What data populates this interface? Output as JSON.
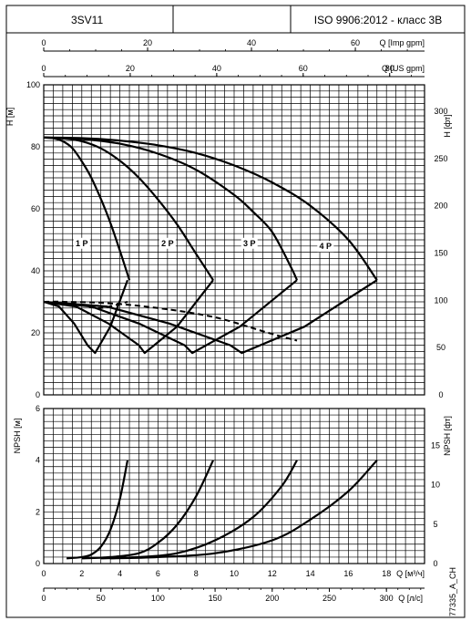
{
  "header": {
    "model": "3SV11",
    "middle": "",
    "standard": "ISO 9906:2012 - класс 3B"
  },
  "code": "77335_A_CH",
  "chart_data": [
    {
      "type": "line",
      "name": "head",
      "ylabel": "H [м]",
      "ylabel_right": "H [фт]",
      "xlim": [
        0,
        20
      ],
      "ylim": [
        0,
        100
      ],
      "yticks": [
        0,
        20,
        40,
        60,
        80,
        100
      ],
      "yticks_right": [
        0,
        50,
        100,
        150,
        200,
        250,
        300
      ],
      "right_ylim": [
        0,
        328.084
      ],
      "x_unit": "m3/h",
      "grid": true,
      "head_series": [
        {
          "name": "1 P",
          "x": [
            0,
            0.5,
            1.0,
            1.5,
            2.0,
            2.5,
            3.0,
            3.5,
            4.0,
            4.5
          ],
          "y": [
            83,
            82.8,
            81.8,
            79.6,
            75.3,
            70.0,
            63.2,
            55.5,
            46.5,
            37.0
          ]
        },
        {
          "name": "2 P",
          "x": [
            0,
            1,
            2,
            3,
            4,
            5,
            6,
            7,
            8,
            8.9
          ],
          "y": [
            83,
            82.7,
            81.8,
            79.5,
            75.5,
            70.0,
            63.0,
            55.0,
            45.5,
            37.0
          ]
        },
        {
          "name": "3 P",
          "x": [
            0,
            2,
            4,
            6,
            8,
            10,
            11,
            12,
            13,
            13.3
          ],
          "y": [
            83,
            82.5,
            81.0,
            77.8,
            72.6,
            64.5,
            59.0,
            52.5,
            41.0,
            37.0
          ]
        },
        {
          "name": "4 P",
          "x": [
            0,
            2,
            4,
            6,
            8,
            10,
            12,
            14,
            16,
            17.5
          ],
          "y": [
            83,
            82.8,
            82.0,
            80.5,
            78.0,
            74.0,
            68.5,
            61.0,
            50.0,
            37.0
          ]
        }
      ],
      "power_series": [
        {
          "name": "",
          "x": [
            0,
            0.8,
            1.6,
            2.3,
            2.7,
            3.5,
            4.4
          ],
          "y": [
            30,
            28.5,
            23.0,
            16.0,
            13.5,
            22.0,
            37.0
          ]
        },
        {
          "name": "",
          "x": [
            0,
            1.7,
            3.4,
            5.0,
            5.3,
            7.0,
            8.9
          ],
          "y": [
            30,
            28.5,
            23.0,
            16.0,
            13.5,
            22.0,
            37.0
          ]
        },
        {
          "name": "",
          "x": [
            0,
            2.5,
            5.0,
            7.4,
            7.8,
            10.3,
            13.3
          ],
          "y": [
            30,
            28.5,
            23.0,
            16.0,
            13.5,
            22.0,
            37.0
          ]
        },
        {
          "name": "",
          "x": [
            0,
            3.3,
            6.6,
            9.8,
            10.4,
            13.7,
            17.5
          ],
          "y": [
            30,
            28.5,
            23.0,
            16.0,
            13.5,
            22.0,
            37.0
          ]
        }
      ],
      "efficiency_series": [
        {
          "name": "",
          "x": [
            0,
            1.0,
            2.0,
            3.0,
            4.4
          ],
          "y": [
            30,
            30,
            29.0,
            28.0,
            30.0
          ]
        },
        {
          "name": "",
          "x": [
            0,
            3,
            6,
            9,
            11.8,
            13.3
          ],
          "y": [
            30,
            29.7,
            28.0,
            25.0,
            20.0,
            17.5
          ]
        }
      ],
      "labels": [
        "1 P",
        "2 P",
        "3 P",
        "4 P"
      ],
      "secondary_axes": [
        {
          "label": "Q [Imp gpm]",
          "ticks": [
            0,
            20,
            40,
            60
          ],
          "per_m3h": 3.666
        },
        {
          "label": "Q [US gpm]",
          "ticks": [
            0,
            20,
            40,
            60,
            80
          ],
          "per_m3h": 4.403
        }
      ]
    },
    {
      "type": "line",
      "name": "npsh",
      "ylabel": "NPSH [м]",
      "ylabel_right": "NPSH [фт]",
      "xlabel": "Q [м³/ч]",
      "xlabel2": "Q [л/с]",
      "xlim": [
        0,
        20
      ],
      "ylim": [
        0,
        6
      ],
      "xticks": [
        0,
        2,
        4,
        6,
        8,
        10,
        12,
        14,
        16,
        18
      ],
      "yticks": [
        0,
        2,
        4,
        6
      ],
      "yticks_right": [
        0,
        5,
        10,
        15
      ],
      "right_ylim": [
        0,
        19.685
      ],
      "secondary_xaxis": {
        "label": "Q [л/с]",
        "ticks": [
          0,
          50,
          100,
          150,
          200,
          250,
          300
        ],
        "per_m3h": 16.667
      },
      "grid": true,
      "series": [
        {
          "name": "",
          "x": [
            1.2,
            2.0,
            2.5,
            3.0,
            3.5,
            4.0,
            4.4
          ],
          "y": [
            0.2,
            0.25,
            0.35,
            0.65,
            1.3,
            2.5,
            4.0
          ]
        },
        {
          "name": "",
          "x": [
            2.0,
            3.5,
            5.0,
            6.0,
            7.0,
            8.0,
            8.9
          ],
          "y": [
            0.2,
            0.25,
            0.4,
            0.8,
            1.5,
            2.6,
            4.0
          ]
        },
        {
          "name": "",
          "x": [
            3.0,
            5.0,
            7.0,
            9.0,
            11.0,
            12.5,
            13.3
          ],
          "y": [
            0.2,
            0.25,
            0.4,
            0.9,
            1.8,
            3.0,
            4.0
          ]
        },
        {
          "name": "",
          "x": [
            3.5,
            6.0,
            9.0,
            12.0,
            14.0,
            16.0,
            17.5
          ],
          "y": [
            0.2,
            0.25,
            0.4,
            0.9,
            1.7,
            2.8,
            4.0
          ]
        }
      ]
    }
  ]
}
